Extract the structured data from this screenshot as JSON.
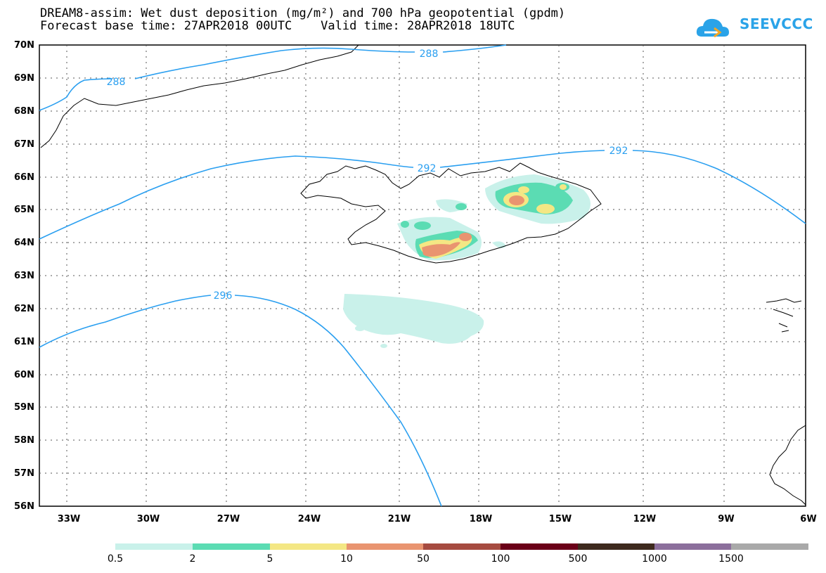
{
  "title_line1": "DREAM8-assim: Wet dust deposition (mg/m²) and 700 hPa geopotential (gpdm)",
  "title_line2": "Forecast base time: 27APR2018 00UTC    Valid time: 28APR2018 18UTC",
  "logo_text": "SEEVCCC",
  "lat_labels": [
    "70N",
    "69N",
    "68N",
    "67N",
    "66N",
    "65N",
    "64N",
    "63N",
    "62N",
    "61N",
    "60N",
    "59N",
    "58N",
    "57N",
    "56N"
  ],
  "lon_labels": [
    "33W",
    "30W",
    "27W",
    "24W",
    "21W",
    "18W",
    "15W",
    "12W",
    "9W",
    "6W"
  ],
  "contour_labels": [
    "288",
    "288",
    "292",
    "292",
    "296"
  ],
  "legend": {
    "labels": [
      "0.5",
      "2",
      "5",
      "10",
      "50",
      "100",
      "500",
      "1000",
      "1500"
    ],
    "colors": [
      "#c9f1ea",
      "#5bdcb3",
      "#f4e784",
      "#e99470",
      "#a64b40",
      "#6b0018",
      "#3e2a1e",
      "#8c6f9c",
      "#a9a9a9"
    ]
  },
  "colors": {
    "contour": "#2a9ff0",
    "coast": "#000000"
  }
}
